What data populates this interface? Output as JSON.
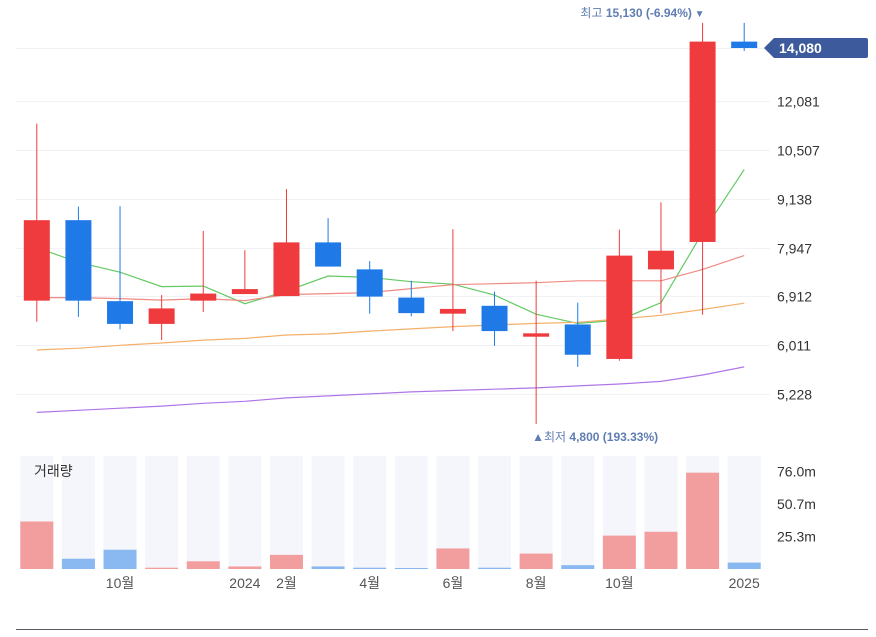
{
  "chart_data": {
    "type": "candlestick",
    "price_axis": {
      "ticks": [
        {
          "value": 14080,
          "label": ""
        },
        {
          "value": 12081,
          "label": "12,081"
        },
        {
          "value": 10507,
          "label": "10,507"
        },
        {
          "value": 9138,
          "label": "9,138"
        },
        {
          "value": 7947,
          "label": "7,947"
        },
        {
          "value": 6912,
          "label": "6,912"
        },
        {
          "value": 6011,
          "label": "6,011"
        },
        {
          "value": 5228,
          "label": "5,228"
        }
      ],
      "scale": "log"
    },
    "current_price": {
      "value": 14080,
      "label": "14,080"
    },
    "high_annotation": {
      "prefix": "최고",
      "value_text": "15,130 (-6.94%)",
      "marker": "▼",
      "value": 15130,
      "index": 16
    },
    "low_annotation": {
      "prefix": "▲최저",
      "value_text": "4,800 (193.33%)",
      "value": 4800,
      "index": 12
    },
    "candles": [
      {
        "o": 6830,
        "h": 11340,
        "l": 6430,
        "c": 8600,
        "up": true
      },
      {
        "o": 8600,
        "h": 8940,
        "l": 6520,
        "c": 6830,
        "up": false
      },
      {
        "o": 6820,
        "h": 8950,
        "l": 6290,
        "c": 6390,
        "up": false
      },
      {
        "o": 6390,
        "h": 6940,
        "l": 6100,
        "c": 6680,
        "up": true
      },
      {
        "o": 6830,
        "h": 8340,
        "l": 6610,
        "c": 6970,
        "up": true
      },
      {
        "o": 6960,
        "h": 7890,
        "l": 6960,
        "c": 7060,
        "up": true
      },
      {
        "o": 6920,
        "h": 9400,
        "l": 6920,
        "c": 8070,
        "up": true
      },
      {
        "o": 8070,
        "h": 8650,
        "l": 7530,
        "c": 7530,
        "up": false
      },
      {
        "o": 7470,
        "h": 7650,
        "l": 6580,
        "c": 6910,
        "up": false
      },
      {
        "o": 6890,
        "h": 7230,
        "l": 6530,
        "c": 6590,
        "up": false
      },
      {
        "o": 6580,
        "h": 8380,
        "l": 6260,
        "c": 6670,
        "up": true
      },
      {
        "o": 6730,
        "h": 7010,
        "l": 6000,
        "c": 6260,
        "up": false
      },
      {
        "o": 6160,
        "h": 7230,
        "l": 4800,
        "c": 6220,
        "up": true
      },
      {
        "o": 6380,
        "h": 6790,
        "l": 5650,
        "c": 5850,
        "up": false
      },
      {
        "o": 5780,
        "h": 8370,
        "l": 5750,
        "c": 7770,
        "up": true
      },
      {
        "o": 7470,
        "h": 9050,
        "l": 6590,
        "c": 7880,
        "up": true
      },
      {
        "o": 8080,
        "h": 15130,
        "l": 6560,
        "c": 14340,
        "up": true
      },
      {
        "o": 14340,
        "h": 15130,
        "l": 13960,
        "c": 14080,
        "up": false
      }
    ],
    "moving_averages": [
      {
        "color": "#64c964",
        "values": [
          7950,
          7620,
          7410,
          7110,
          7120,
          6770,
          7020,
          7330,
          7300,
          7210,
          7160,
          6940,
          6570,
          6400,
          6460,
          6790,
          8300,
          9940
        ]
      },
      {
        "color": "#f08a82",
        "values": [
          6890,
          6890,
          6870,
          6840,
          6870,
          6830,
          6950,
          6970,
          6990,
          7070,
          7150,
          7170,
          7190,
          7230,
          7230,
          7230,
          7470,
          7770
        ]
      },
      {
        "color": "#f5b06a",
        "values": [
          5930,
          5960,
          6010,
          6050,
          6100,
          6130,
          6190,
          6210,
          6260,
          6300,
          6340,
          6370,
          6400,
          6420,
          6480,
          6550,
          6660,
          6780
        ]
      },
      {
        "color": "#b076e8",
        "values": [
          4960,
          4990,
          5020,
          5050,
          5090,
          5120,
          5170,
          5200,
          5230,
          5260,
          5280,
          5300,
          5320,
          5350,
          5380,
          5420,
          5520,
          5650
        ]
      }
    ],
    "volume": {
      "title": "거래량",
      "max": 88,
      "ticks": [
        {
          "value": 76.0,
          "label": "76.0m"
        },
        {
          "value": 50.7,
          "label": "50.7m"
        },
        {
          "value": 25.3,
          "label": "25.3m"
        }
      ],
      "values": [
        37,
        8,
        15,
        1,
        6,
        2,
        11,
        2,
        1,
        0.5,
        16,
        1,
        12,
        3,
        26,
        29,
        75,
        5
      ]
    },
    "x_ticks": [
      {
        "index": 2,
        "label": "10월"
      },
      {
        "index": 5,
        "label": "2024"
      },
      {
        "index": 6,
        "label": "2월"
      },
      {
        "index": 8,
        "label": "4월"
      },
      {
        "index": 10,
        "label": "6월"
      },
      {
        "index": 12,
        "label": "8월"
      },
      {
        "index": 14,
        "label": "10월"
      },
      {
        "index": 17,
        "label": "2025"
      }
    ],
    "colors": {
      "up": "#ef3b3d",
      "down": "#1f7ae8",
      "up_volume": "#f29d9e",
      "down_volume": "#8ab8f0",
      "volume_bg": "#f5f6fb",
      "annotation": "#5f7db3",
      "price_tag": "#3d5a9c"
    }
  }
}
